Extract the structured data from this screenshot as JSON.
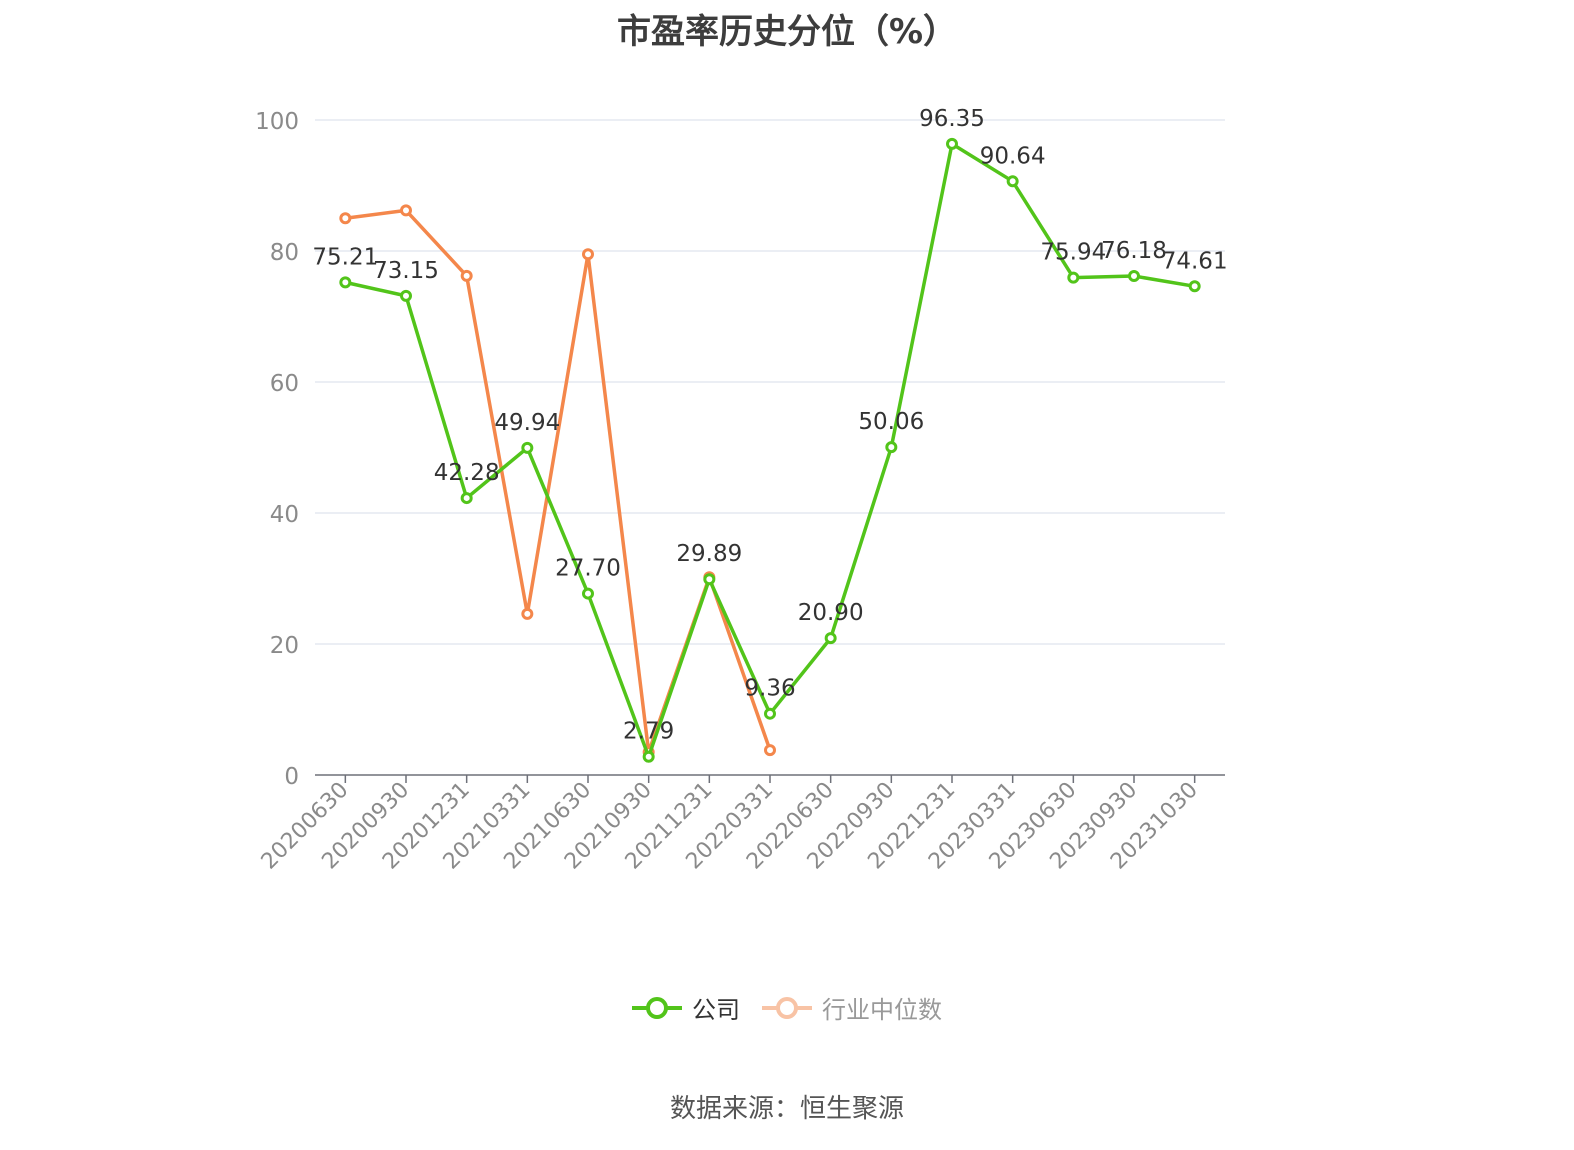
{
  "chart_data": {
    "type": "line",
    "title": "市盈率历史分位（%）",
    "categories": [
      "20200630",
      "20200930",
      "20201231",
      "20210331",
      "20210630",
      "20210930",
      "20211231",
      "20220331",
      "20220630",
      "20220930",
      "20221231",
      "20230331",
      "20230630",
      "20230930",
      "20231030"
    ],
    "series": [
      {
        "name": "公司",
        "color": "#52c41a",
        "values": [
          75.21,
          73.15,
          42.28,
          49.94,
          27.7,
          2.79,
          29.89,
          9.36,
          20.9,
          50.06,
          96.35,
          90.64,
          75.94,
          76.18,
          74.61
        ],
        "labels": [
          "75.21",
          "73.15",
          "42.28",
          "49.94",
          "27.70",
          "2.79",
          "29.89",
          "9.36",
          "20.90",
          "50.06",
          "96.35",
          "90.64",
          "75.94",
          "76.18",
          "74.61"
        ]
      },
      {
        "name": "行业中位数",
        "color": "#f4874b",
        "values": [
          85,
          86.2,
          76.2,
          24.6,
          79.5,
          3.5,
          30.2,
          3.8,
          null,
          null,
          null,
          null,
          null,
          null,
          null
        ]
      }
    ],
    "yticks": [
      0,
      20,
      40,
      60,
      80,
      100
    ],
    "ylim": [
      0,
      100
    ],
    "grid": true,
    "legend_position": "bottom"
  },
  "source_text": "数据来源：恒生聚源"
}
